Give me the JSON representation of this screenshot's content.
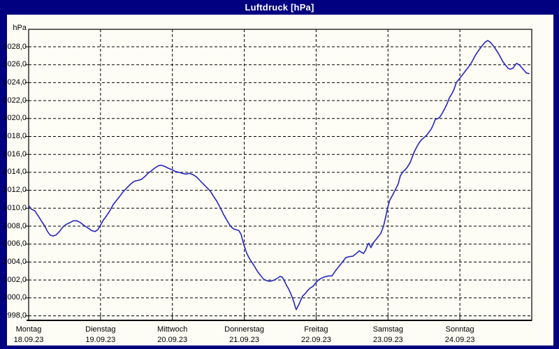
{
  "window": {
    "title": "Luftdruck [hPa]"
  },
  "colors": {
    "window_border": "#000080",
    "titlebar_bg": "#000080",
    "titlebar_text": "#ffffff",
    "panel_bg": "#fdfdf5",
    "grid": "#000000",
    "line": "#2424c4"
  },
  "chart_data": {
    "type": "line",
    "title": "Luftdruck [hPa]",
    "ylabel": "hPa",
    "grid": "dashed",
    "legend": "none",
    "ylim": [
      997.5,
      1029.9
    ],
    "y_ticks": [
      {
        "label": "1028,0",
        "value": 1028
      },
      {
        "label": "1026,0",
        "value": 1026
      },
      {
        "label": "1024,0",
        "value": 1024
      },
      {
        "label": "1022,0",
        "value": 1022
      },
      {
        "label": "1020,0",
        "value": 1020
      },
      {
        "label": "1018,0",
        "value": 1018
      },
      {
        "label": "1016,0",
        "value": 1016
      },
      {
        "label": "1014,0",
        "value": 1014
      },
      {
        "label": "1012,0",
        "value": 1012
      },
      {
        "label": "1010,0",
        "value": 1010
      },
      {
        "label": "1008,0",
        "value": 1008
      },
      {
        "label": "1006,0",
        "value": 1006
      },
      {
        "label": "1004,0",
        "value": 1004
      },
      {
        "label": "1002,0",
        "value": 1002
      },
      {
        "label": "1000,0",
        "value": 1000
      },
      {
        "label": "998,0",
        "value": 998
      }
    ],
    "x_range_hours": [
      0,
      168
    ],
    "x_day_boundary_hours": [
      24,
      48,
      72,
      96,
      120,
      144
    ],
    "days": [
      {
        "name": "Montag",
        "date": "18.09.23",
        "start_hour": 0
      },
      {
        "name": "Dienstag",
        "date": "19.09.23",
        "start_hour": 24
      },
      {
        "name": "Mittwoch",
        "date": "20.09.23",
        "start_hour": 48
      },
      {
        "name": "Donnerstag",
        "date": "21.09.23",
        "start_hour": 72
      },
      {
        "name": "Freitag",
        "date": "22.09.23",
        "start_hour": 96
      },
      {
        "name": "Samstag",
        "date": "23.09.23",
        "start_hour": 120
      },
      {
        "name": "Sonntag",
        "date": "24.09.23",
        "start_hour": 144
      }
    ],
    "series": [
      {
        "name": "Luftdruck",
        "unit": "hPa",
        "points": [
          [
            0,
            1010.3
          ],
          [
            0.9,
            1009.9
          ],
          [
            2.1,
            1009.7
          ],
          [
            3.3,
            1009.1
          ],
          [
            4.4,
            1008.5
          ],
          [
            5.4,
            1008.0
          ],
          [
            6.3,
            1007.4
          ],
          [
            7.2,
            1007.0
          ],
          [
            8.2,
            1006.9
          ],
          [
            9.1,
            1007.0
          ],
          [
            10.3,
            1007.4
          ],
          [
            11.4,
            1007.9
          ],
          [
            12.6,
            1008.2
          ],
          [
            13.8,
            1008.4
          ],
          [
            14.9,
            1008.6
          ],
          [
            16.1,
            1008.6
          ],
          [
            17.3,
            1008.4
          ],
          [
            18.4,
            1008.1
          ],
          [
            19.8,
            1007.8
          ],
          [
            21,
            1007.5
          ],
          [
            22.2,
            1007.4
          ],
          [
            23.1,
            1007.6
          ],
          [
            23.8,
            1008.0
          ],
          [
            25,
            1008.7
          ],
          [
            25.9,
            1009.1
          ],
          [
            27.1,
            1009.7
          ],
          [
            28.2,
            1010.4
          ],
          [
            29.4,
            1010.9
          ],
          [
            30.6,
            1011.4
          ],
          [
            31.7,
            1011.9
          ],
          [
            32.9,
            1012.3
          ],
          [
            34.1,
            1012.7
          ],
          [
            35.2,
            1013.0
          ],
          [
            36.4,
            1013.1
          ],
          [
            37.6,
            1013.2
          ],
          [
            38.7,
            1013.5
          ],
          [
            39.9,
            1013.9
          ],
          [
            41.1,
            1014.2
          ],
          [
            42.2,
            1014.5
          ],
          [
            43.4,
            1014.75
          ],
          [
            44.3,
            1014.8
          ],
          [
            45.5,
            1014.65
          ],
          [
            46.7,
            1014.45
          ],
          [
            47.8,
            1014.3
          ],
          [
            49,
            1014.1
          ],
          [
            50.2,
            1014.0
          ],
          [
            51.3,
            1013.9
          ],
          [
            52.5,
            1013.8
          ],
          [
            53.7,
            1013.9
          ],
          [
            54.8,
            1013.75
          ],
          [
            56,
            1013.5
          ],
          [
            57.2,
            1013.1
          ],
          [
            58.3,
            1012.7
          ],
          [
            59.5,
            1012.3
          ],
          [
            60.7,
            1011.9
          ],
          [
            61.6,
            1011.4
          ],
          [
            62.8,
            1010.8
          ],
          [
            63.9,
            1010.1
          ],
          [
            65.1,
            1009.3
          ],
          [
            66.3,
            1008.6
          ],
          [
            67.4,
            1008.0
          ],
          [
            68.4,
            1007.7
          ],
          [
            69.3,
            1007.6
          ],
          [
            70.2,
            1007.5
          ],
          [
            70.9,
            1007.1
          ],
          [
            71.9,
            1005.9
          ],
          [
            72.8,
            1005.0
          ],
          [
            73.7,
            1004.4
          ],
          [
            74.7,
            1003.9
          ],
          [
            75.6,
            1003.4
          ],
          [
            76.5,
            1002.9
          ],
          [
            77.5,
            1002.5
          ],
          [
            78.4,
            1002.1
          ],
          [
            79.3,
            1001.95
          ],
          [
            80.3,
            1001.85
          ],
          [
            81.2,
            1001.9
          ],
          [
            82.1,
            1002.0
          ],
          [
            83.1,
            1002.2
          ],
          [
            84,
            1002.4
          ],
          [
            84.7,
            1002.3
          ],
          [
            85.4,
            1001.9
          ],
          [
            86.1,
            1001.4
          ],
          [
            86.8,
            1001.0
          ],
          [
            87.5,
            1000.5
          ],
          [
            88.2,
            999.9
          ],
          [
            88.7,
            999.4
          ],
          [
            89.1,
            998.9
          ],
          [
            89.4,
            998.7
          ],
          [
            89.8,
            999.0
          ],
          [
            90.3,
            999.3
          ],
          [
            90.8,
            999.7
          ],
          [
            91.5,
            1000.2
          ],
          [
            92.4,
            1000.5
          ],
          [
            93.1,
            1000.8
          ],
          [
            94,
            1001.1
          ],
          [
            95,
            1001.3
          ],
          [
            95.9,
            1001.7
          ],
          [
            96.8,
            1002.0
          ],
          [
            97.8,
            1002.2
          ],
          [
            98.9,
            1002.35
          ],
          [
            100.1,
            1002.45
          ],
          [
            101.3,
            1002.45
          ],
          [
            102.4,
            1003.0
          ],
          [
            103.6,
            1003.5
          ],
          [
            104.8,
            1004.0
          ],
          [
            105.9,
            1004.5
          ],
          [
            107.1,
            1004.6
          ],
          [
            108.3,
            1004.65
          ],
          [
            109.4,
            1004.95
          ],
          [
            110.4,
            1005.25
          ],
          [
            111.1,
            1005.1
          ],
          [
            111.8,
            1004.95
          ],
          [
            112.5,
            1005.3
          ],
          [
            113.2,
            1005.9
          ],
          [
            113.6,
            1006.1
          ],
          [
            114.3,
            1005.6
          ],
          [
            115,
            1006.1
          ],
          [
            115.7,
            1006.4
          ],
          [
            116.7,
            1006.8
          ],
          [
            117.6,
            1007.2
          ],
          [
            118.5,
            1008.0
          ],
          [
            119.2,
            1009.0
          ],
          [
            119.9,
            1010.1
          ],
          [
            120.6,
            1010.9
          ],
          [
            121.6,
            1011.5
          ],
          [
            122.5,
            1012.1
          ],
          [
            123.4,
            1012.7
          ],
          [
            124.1,
            1013.6
          ],
          [
            125.1,
            1014.1
          ],
          [
            125.8,
            1014.3
          ],
          [
            126.5,
            1014.6
          ],
          [
            127.4,
            1015.1
          ],
          [
            128.1,
            1015.7
          ],
          [
            128.8,
            1016.3
          ],
          [
            129.7,
            1016.9
          ],
          [
            130.4,
            1017.3
          ],
          [
            131.1,
            1017.6
          ],
          [
            132.1,
            1017.9
          ],
          [
            132.8,
            1018.1
          ],
          [
            133.5,
            1018.4
          ],
          [
            134.4,
            1018.8
          ],
          [
            135.1,
            1019.3
          ],
          [
            135.8,
            1019.9
          ],
          [
            136.7,
            1020.0
          ],
          [
            137.4,
            1020.2
          ],
          [
            138.1,
            1020.6
          ],
          [
            139.1,
            1021.2
          ],
          [
            139.8,
            1021.7
          ],
          [
            140.5,
            1022.3
          ],
          [
            141.4,
            1022.8
          ],
          [
            142.1,
            1023.3
          ],
          [
            142.8,
            1024.0
          ],
          [
            144,
            1024.5
          ],
          [
            144.7,
            1024.8
          ],
          [
            145.4,
            1025.1
          ],
          [
            146.1,
            1025.4
          ],
          [
            147,
            1025.8
          ],
          [
            148,
            1026.3
          ],
          [
            149.1,
            1027.0
          ],
          [
            150.3,
            1027.6
          ],
          [
            151.4,
            1028.1
          ],
          [
            152.4,
            1028.5
          ],
          [
            153.3,
            1028.7
          ],
          [
            154.2,
            1028.5
          ],
          [
            155.4,
            1028.0
          ],
          [
            156.8,
            1027.3
          ],
          [
            158.4,
            1026.3
          ],
          [
            160.1,
            1025.6
          ],
          [
            160.8,
            1025.5
          ],
          [
            161.7,
            1025.6
          ],
          [
            162.9,
            1026.15
          ],
          [
            163.8,
            1026.0
          ],
          [
            165,
            1025.55
          ],
          [
            166.1,
            1025.1
          ],
          [
            167.1,
            1025.0
          ]
        ]
      }
    ]
  }
}
